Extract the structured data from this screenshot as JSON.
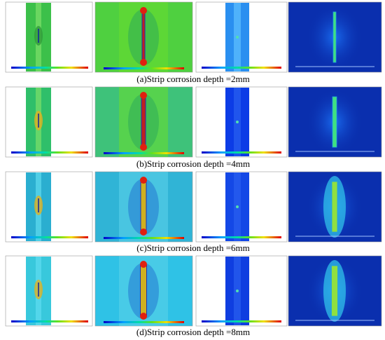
{
  "captions": [
    "(a)Strip corrosion depth =2mm",
    "(b)Strip corrosion depth =4mm",
    "(c)Strip corrosion depth =6mm",
    "(d)Strip corrosion depth =8mm"
  ]
}
